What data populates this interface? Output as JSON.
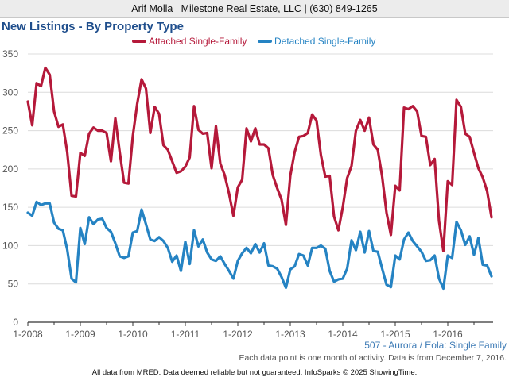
{
  "header": {
    "text": "Arif Molla | Milestone Real Estate, LLC | (630) 849-1265"
  },
  "colors": {
    "attached": "#b5193a",
    "detached": "#2583c3",
    "title": "#1f4e8c"
  },
  "chart_data": {
    "type": "line",
    "title": "New Listings - By Property Type",
    "xlabel": "",
    "ylabel": "",
    "ylim": [
      0,
      350
    ],
    "yticks": [
      0,
      50,
      100,
      150,
      200,
      250,
      300,
      350
    ],
    "grid": true,
    "legend": "top-center",
    "x_start": "1-2008",
    "x_end": "12-2016",
    "xtick_labels": [
      "1-2008",
      "1-2009",
      "1-2010",
      "1-2011",
      "1-2012",
      "1-2013",
      "1-2014",
      "1-2015",
      "1-2016"
    ],
    "series": [
      {
        "name": "Attached Single-Family",
        "values": [
          288,
          257,
          312,
          308,
          332,
          323,
          275,
          255,
          258,
          222,
          165,
          164,
          221,
          217,
          246,
          254,
          250,
          250,
          247,
          210,
          266,
          222,
          182,
          181,
          243,
          285,
          317,
          305,
          247,
          281,
          272,
          231,
          225,
          210,
          195,
          197,
          203,
          215,
          282,
          251,
          246,
          247,
          201,
          256,
          207,
          192,
          168,
          139,
          176,
          186,
          253,
          236,
          253,
          232,
          232,
          227,
          192,
          175,
          160,
          127,
          191,
          222,
          242,
          243,
          247,
          271,
          263,
          218,
          190,
          191,
          138,
          120,
          150,
          188,
          204,
          250,
          264,
          250,
          267,
          232,
          225,
          190,
          143,
          114,
          178,
          172,
          280,
          278,
          282,
          275,
          243,
          242,
          205,
          213,
          132,
          93,
          184,
          179,
          290,
          281,
          246,
          242,
          221,
          201,
          189,
          171,
          137
        ]
      },
      {
        "name": "Detached Single-Family",
        "values": [
          143,
          139,
          157,
          153,
          155,
          155,
          130,
          122,
          120,
          95,
          57,
          52,
          123,
          102,
          137,
          128,
          134,
          135,
          123,
          118,
          103,
          86,
          84,
          86,
          117,
          119,
          147,
          128,
          108,
          106,
          111,
          106,
          97,
          79,
          87,
          67,
          105,
          76,
          120,
          99,
          108,
          91,
          82,
          80,
          86,
          76,
          67,
          57,
          80,
          90,
          97,
          90,
          102,
          91,
          103,
          74,
          73,
          70,
          59,
          45,
          69,
          73,
          89,
          87,
          74,
          97,
          97,
          100,
          96,
          67,
          53,
          56,
          57,
          70,
          107,
          94,
          118,
          91,
          119,
          93,
          92,
          70,
          49,
          46,
          87,
          82,
          108,
          117,
          106,
          99,
          92,
          80,
          81,
          87,
          57,
          44,
          87,
          84,
          131,
          120,
          101,
          112,
          88,
          110,
          75,
          74,
          60
        ]
      }
    ]
  },
  "footnotes": {
    "region": "507 - Aurora / Eola: Single Family",
    "activity": "Each data point is one month of activity. Data is from December 7, 2016.",
    "disclaimer": "All data from MRED. Data deemed reliable but not guaranteed. InfoSparks © 2025 ShowingTime."
  }
}
